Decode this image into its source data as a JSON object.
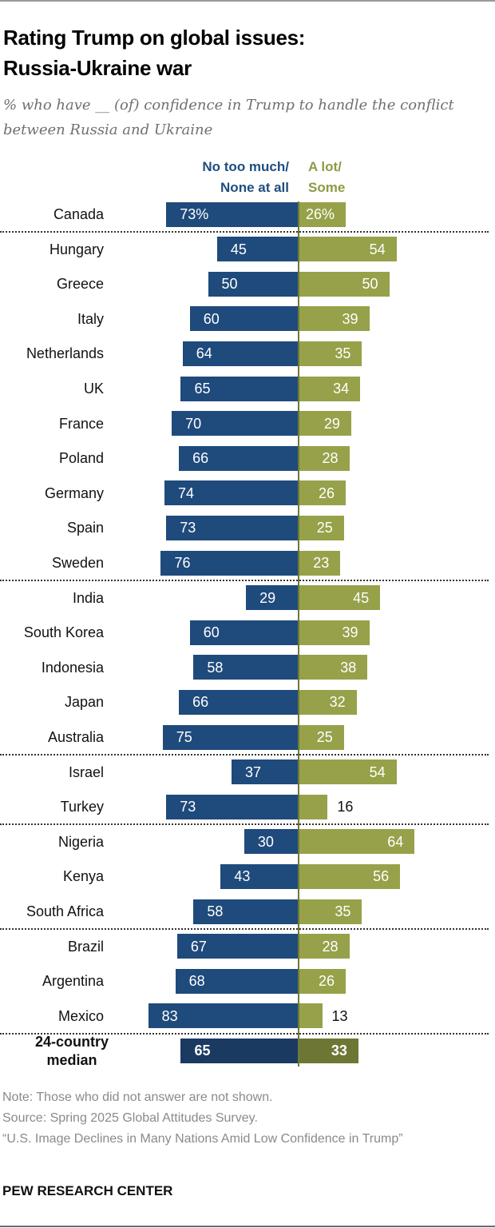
{
  "title_lines": [
    "Rating Trump on global issues:",
    "Russia-Ukraine war"
  ],
  "subtitle": "% who have __ (of) confidence in Trump to handle the conflict between Russia and Ukraine",
  "legend": {
    "negative_lines": [
      "No too much/",
      "None at all"
    ],
    "positive_lines": [
      "A lot/",
      "Some"
    ]
  },
  "colors": {
    "negative": "#1f4a7c",
    "positive": "#97a14a",
    "median_negative": "#1b3a62",
    "median_positive": "#6e7634"
  },
  "chart_data": {
    "type": "bar",
    "orientation": "horizontal-diverging",
    "title": "Rating Trump on global issues: Russia-Ukraine war",
    "series": [
      {
        "name": "No too much/None at all",
        "values": [
          73,
          45,
          50,
          60,
          64,
          65,
          70,
          66,
          74,
          73,
          76,
          29,
          60,
          58,
          66,
          75,
          37,
          73,
          30,
          43,
          58,
          67,
          68,
          83,
          65
        ]
      },
      {
        "name": "A lot/Some",
        "values": [
          26,
          54,
          50,
          39,
          35,
          34,
          29,
          28,
          26,
          25,
          23,
          45,
          39,
          38,
          32,
          25,
          54,
          16,
          64,
          56,
          35,
          28,
          26,
          13,
          33
        ]
      }
    ],
    "categories": [
      "Canada",
      "Hungary",
      "Greece",
      "Italy",
      "Netherlands",
      "UK",
      "France",
      "Poland",
      "Germany",
      "Spain",
      "Sweden",
      "India",
      "South Korea",
      "Indonesia",
      "Japan",
      "Australia",
      "Israel",
      "Turkey",
      "Nigeria",
      "Kenya",
      "South Africa",
      "Brazil",
      "Argentina",
      "Mexico",
      "24-country median"
    ],
    "value_labels_negative": [
      "73%",
      "45",
      "50",
      "60",
      "64",
      "65",
      "70",
      "66",
      "74",
      "73",
      "76",
      "29",
      "60",
      "58",
      "66",
      "75",
      "37",
      "73",
      "30",
      "43",
      "58",
      "67",
      "68",
      "83",
      "65"
    ],
    "value_labels_positive": [
      "26%",
      "54",
      "50",
      "39",
      "35",
      "34",
      "29",
      "28",
      "26",
      "25",
      "23",
      "45",
      "39",
      "38",
      "32",
      "25",
      "54",
      "16",
      "64",
      "56",
      "35",
      "28",
      "26",
      "13",
      "33"
    ],
    "separators_after": [
      "Canada",
      "Sweden",
      "Australia",
      "Turkey",
      "South Africa",
      "Mexico"
    ],
    "xlim": [
      0,
      100
    ]
  },
  "notes": {
    "note": "Note: Those who did not answer are not shown.",
    "source": "Source: Spring 2025 Global Attitudes Survey.",
    "report": "“U.S. Image Declines in Many Nations Amid Low Confidence in Trump”"
  },
  "brand": "PEW RESEARCH CENTER"
}
